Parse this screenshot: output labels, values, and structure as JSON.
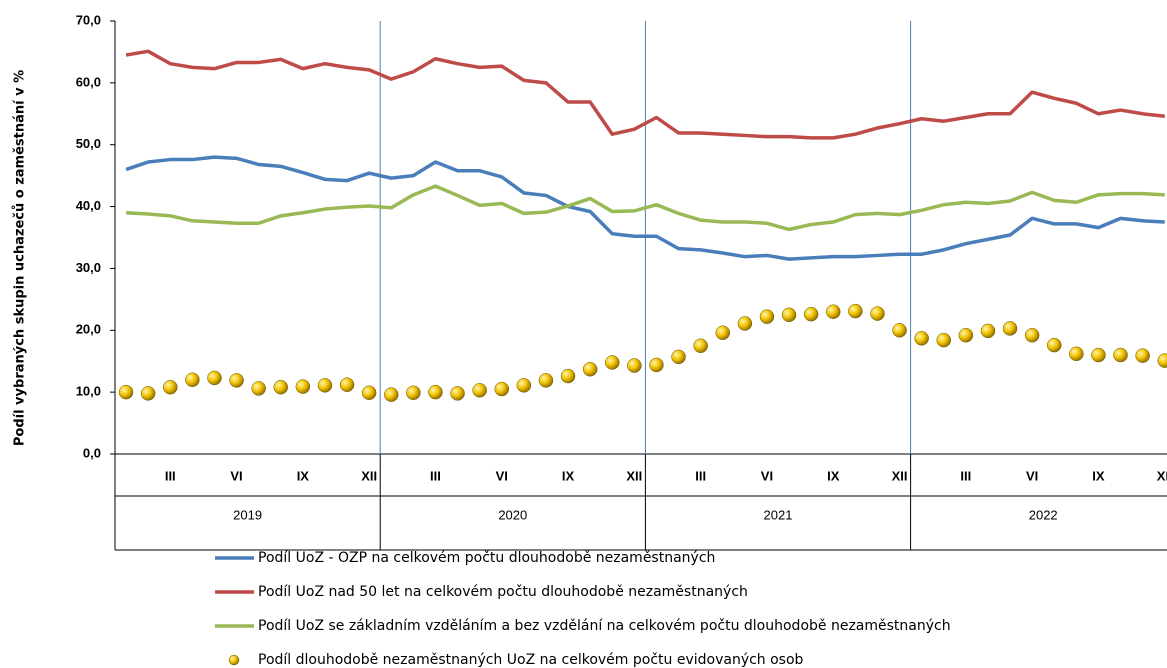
{
  "chart_data": {
    "type": "line",
    "y_label": "Podíl vybraných skupin uchazečů o zaměstnání v %",
    "categories": [
      null,
      null,
      "III",
      null,
      null,
      "VI",
      null,
      null,
      "IX",
      null,
      null,
      "XII",
      null,
      null,
      "III",
      null,
      null,
      "VI",
      null,
      null,
      "IX",
      null,
      null,
      "XII",
      null,
      null,
      "III",
      null,
      null,
      "VI",
      null,
      null,
      "IX",
      null,
      null,
      "XII",
      null,
      null,
      "III",
      null,
      null,
      "VI",
      null,
      null,
      "IX",
      null,
      null,
      "XII"
    ],
    "years": [
      "2019",
      "2020",
      "2021",
      "2022"
    ],
    "ylim": [
      0,
      70
    ],
    "yticks": [
      {
        "value": 0,
        "label": "0,0"
      },
      {
        "value": 10,
        "label": "10,0"
      },
      {
        "value": 20,
        "label": "20,0"
      },
      {
        "value": 30,
        "label": "30,0"
      },
      {
        "value": 40,
        "label": "40,0"
      },
      {
        "value": 50,
        "label": "50,0"
      },
      {
        "value": 60,
        "label": "60,0"
      },
      {
        "value": 70,
        "label": "70,0"
      }
    ],
    "series": [
      {
        "name": "Podíl UoZ - OZP na celkovém počtu dlouhodobě nezaměstnaných",
        "color": "#4a7ebb",
        "style": "line",
        "values": [
          46.0,
          47.2,
          47.6,
          47.6,
          48.0,
          47.8,
          46.8,
          46.5,
          45.5,
          44.4,
          44.2,
          45.4,
          44.6,
          45.0,
          47.2,
          45.8,
          45.8,
          44.8,
          42.2,
          41.8,
          40.0,
          39.2,
          35.6,
          35.2,
          35.2,
          33.2,
          33.0,
          32.5,
          31.9,
          32.1,
          31.5,
          31.7,
          31.9,
          31.9,
          32.1,
          32.3,
          32.3,
          33.0,
          34.0,
          34.7,
          35.4,
          38.1,
          37.2,
          37.2,
          36.6,
          38.1,
          37.7,
          37.5
        ]
      },
      {
        "name": "Podíl UoZ nad 50 let na celkovém počtu dlouhodobě nezaměstnaných",
        "color": "#be4b48",
        "style": "line",
        "values": [
          64.5,
          65.1,
          63.1,
          62.5,
          62.3,
          63.3,
          63.3,
          63.8,
          62.3,
          63.1,
          62.5,
          62.1,
          60.6,
          61.8,
          63.9,
          63.1,
          62.5,
          62.7,
          60.4,
          60.0,
          56.9,
          56.9,
          51.7,
          52.5,
          54.4,
          51.9,
          51.9,
          51.7,
          51.5,
          51.3,
          51.3,
          51.1,
          51.1,
          51.7,
          52.7,
          53.4,
          54.2,
          53.8,
          54.4,
          55.0,
          55.0,
          58.5,
          57.5,
          56.7,
          55.0,
          55.6,
          55.0,
          54.6
        ]
      },
      {
        "name": "Podíl UoZ se základním vzděláním a bez vzdělání na celkovém počtu dlouhodobě nezaměstnaných",
        "color": "#98b954",
        "style": "line",
        "values": [
          39.0,
          38.8,
          38.5,
          37.7,
          37.5,
          37.3,
          37.3,
          38.5,
          39.0,
          39.6,
          39.9,
          40.1,
          39.8,
          41.9,
          43.3,
          41.8,
          40.2,
          40.5,
          38.9,
          39.1,
          40.1,
          41.3,
          39.2,
          39.3,
          40.3,
          38.9,
          37.8,
          37.5,
          37.5,
          37.3,
          36.3,
          37.1,
          37.5,
          38.7,
          38.9,
          38.7,
          39.4,
          40.3,
          40.7,
          40.5,
          40.9,
          42.3,
          41.0,
          40.7,
          41.9,
          42.1,
          42.1,
          41.9
        ]
      },
      {
        "name": "Podíl dlouhodobě nezaměstnaných UoZ na celkovém počtu evidovaných osob",
        "color": "#f2c200",
        "style": "markers",
        "values": [
          10.0,
          9.8,
          10.8,
          12.0,
          12.3,
          11.9,
          10.6,
          10.8,
          10.9,
          11.1,
          11.2,
          9.9,
          9.6,
          9.9,
          10.0,
          9.8,
          10.3,
          10.5,
          11.1,
          11.9,
          12.6,
          13.7,
          14.8,
          14.3,
          14.4,
          15.7,
          17.5,
          19.6,
          21.1,
          22.2,
          22.5,
          22.6,
          23.0,
          23.1,
          22.7,
          20.0,
          18.7,
          18.4,
          19.2,
          19.9,
          20.3,
          19.2,
          17.6,
          16.2,
          16.0,
          16.0,
          15.9,
          15.1
        ]
      }
    ]
  }
}
